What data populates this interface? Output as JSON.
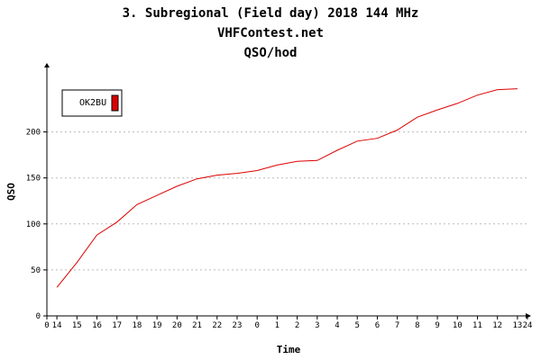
{
  "chart_data": {
    "type": "line",
    "titles": [
      "3. Subregional (Field day) 2018 144 MHz",
      "VHFContest.net",
      "QSO/hod"
    ],
    "xlabel": "Time",
    "ylabel": "QSO",
    "x_ticks": [
      {
        "label": "0",
        "value": 0
      },
      {
        "label": "14",
        "value": 0.5
      },
      {
        "label": "15",
        "value": 1.5
      },
      {
        "label": "16",
        "value": 2.5
      },
      {
        "label": "17",
        "value": 3.5
      },
      {
        "label": "18",
        "value": 4.5
      },
      {
        "label": "19",
        "value": 5.5
      },
      {
        "label": "20",
        "value": 6.5
      },
      {
        "label": "21",
        "value": 7.5
      },
      {
        "label": "22",
        "value": 8.5
      },
      {
        "label": "23",
        "value": 9.5
      },
      {
        "label": "0",
        "value": 10.5
      },
      {
        "label": "1",
        "value": 11.5
      },
      {
        "label": "2",
        "value": 12.5
      },
      {
        "label": "3",
        "value": 13.5
      },
      {
        "label": "4",
        "value": 14.5
      },
      {
        "label": "5",
        "value": 15.5
      },
      {
        "label": "6",
        "value": 16.5
      },
      {
        "label": "7",
        "value": 17.5
      },
      {
        "label": "8",
        "value": 18.5
      },
      {
        "label": "9",
        "value": 19.5
      },
      {
        "label": "10",
        "value": 20.5
      },
      {
        "label": "11",
        "value": 21.5
      },
      {
        "label": "12",
        "value": 22.5
      },
      {
        "label": "13",
        "value": 23.5
      },
      {
        "label": "24",
        "value": 24
      }
    ],
    "xlim": [
      0,
      24
    ],
    "ylim": [
      0,
      272
    ],
    "y_ticks": [
      0,
      50,
      100,
      150,
      200
    ],
    "grid": true,
    "legend_position": "top-left",
    "series": [
      {
        "name": "OK2BU",
        "color": "#dd0000",
        "x": [
          0.5,
          1.5,
          2.5,
          3.5,
          4.5,
          5.5,
          6.5,
          7.5,
          8.5,
          9.5,
          10.5,
          11.5,
          12.5,
          13.5,
          14.5,
          15.5,
          16.5,
          17.5,
          18.5,
          19.5,
          20.5,
          21.5,
          22.5,
          23.5
        ],
        "y": [
          31,
          58,
          88,
          102,
          121,
          131,
          141,
          149,
          153,
          155,
          158,
          164,
          168,
          169,
          180,
          190,
          193,
          202,
          216,
          224,
          231,
          240,
          246,
          247
        ]
      }
    ]
  }
}
